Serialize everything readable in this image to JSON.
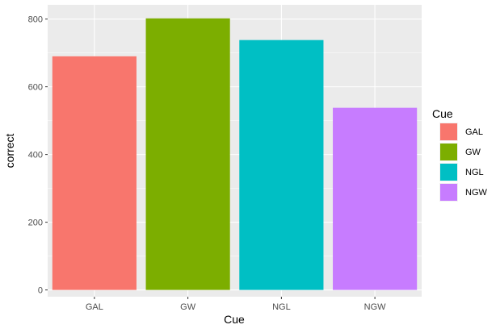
{
  "chart_data": {
    "type": "bar",
    "categories": [
      "GAL",
      "GW",
      "NGL",
      "NGW"
    ],
    "values": [
      690,
      802,
      738,
      538
    ],
    "colors": [
      "#F8766D",
      "#7CAE00",
      "#00BFC4",
      "#C77CFF"
    ],
    "xlabel": "Cue",
    "ylabel": "correct",
    "ylim": [
      -20,
      842
    ],
    "yticks": [
      0,
      200,
      400,
      600,
      800
    ],
    "grid": true,
    "background": "#EBEBEB",
    "legend": {
      "title": "Cue",
      "placement": "right",
      "entries": [
        "GAL",
        "GW",
        "NGL",
        "NGW"
      ]
    }
  }
}
